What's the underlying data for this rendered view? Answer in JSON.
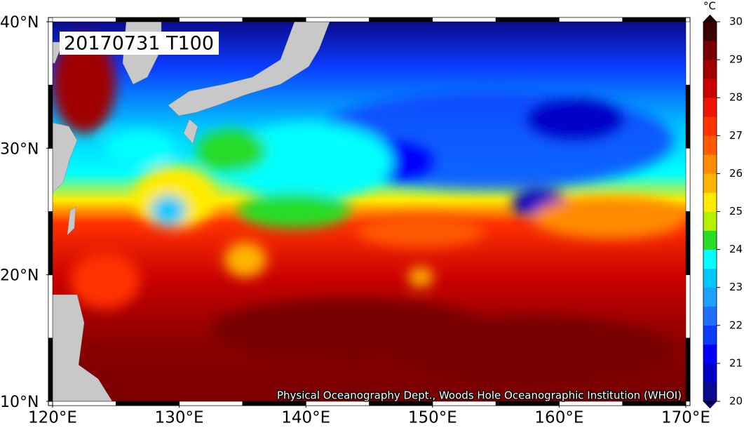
{
  "map": {
    "title": "20170731 T100",
    "credit": "Physical Oceanography Dept., Woods Hole Oceanographic Institution (WHOI)",
    "lon_range": [
      120,
      170
    ],
    "lat_range": [
      10,
      40
    ],
    "lon_ticks": [
      {
        "value": 120,
        "label": "120°E"
      },
      {
        "value": 130,
        "label": "130°E"
      },
      {
        "value": 140,
        "label": "140°E"
      },
      {
        "value": 150,
        "label": "150°E"
      },
      {
        "value": 160,
        "label": "160°E"
      },
      {
        "value": 170,
        "label": "170°E"
      }
    ],
    "lat_ticks": [
      {
        "value": 10,
        "label": "10°N"
      },
      {
        "value": 20,
        "label": "20°N"
      },
      {
        "value": 30,
        "label": "30°N"
      },
      {
        "value": 40,
        "label": "40°N"
      }
    ],
    "colorbar": {
      "unit": "°C",
      "range": [
        20,
        30
      ],
      "ticks": [
        20,
        21,
        22,
        23,
        24,
        25,
        26,
        27,
        28,
        29,
        30
      ],
      "colors": [
        "#0a0a8c",
        "#0000c8",
        "#0000ff",
        "#0a3cff",
        "#1e6eff",
        "#1ea0ff",
        "#00c8ff",
        "#00ffff",
        "#28dc28",
        "#b4f000",
        "#ffeb00",
        "#ffb400",
        "#ff8c00",
        "#ff5a00",
        "#ff3200",
        "#f01400",
        "#c80000",
        "#a00000",
        "#780000",
        "#3c0000"
      ],
      "under_color": "#000064",
      "over_color": "#200000"
    }
  }
}
